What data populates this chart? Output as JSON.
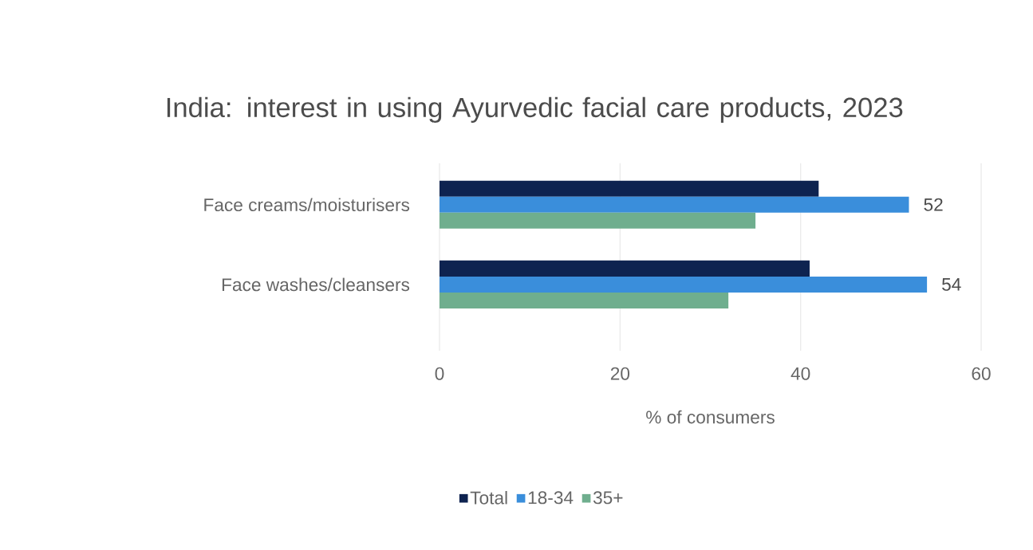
{
  "chart_data": {
    "type": "bar",
    "orientation": "horizontal",
    "title": "India: interest in using Ayurvedic facial care products, 2023",
    "xlabel": "% of consumers",
    "categories": [
      "Face creams/moisturisers",
      "Face washes/cleansers"
    ],
    "series": [
      {
        "name": "Total",
        "color": "#0e2350",
        "values": [
          42,
          41
        ]
      },
      {
        "name": "18-34",
        "color": "#3a8edb",
        "values": [
          52,
          54
        ],
        "value_labels": [
          "52",
          "54"
        ]
      },
      {
        "name": "35+",
        "color": "#6fae8e",
        "values": [
          35,
          32
        ]
      }
    ],
    "xlim": [
      0,
      60
    ],
    "xticks": [
      0,
      20,
      40,
      60
    ],
    "grid": "x",
    "legend": "bottom"
  }
}
